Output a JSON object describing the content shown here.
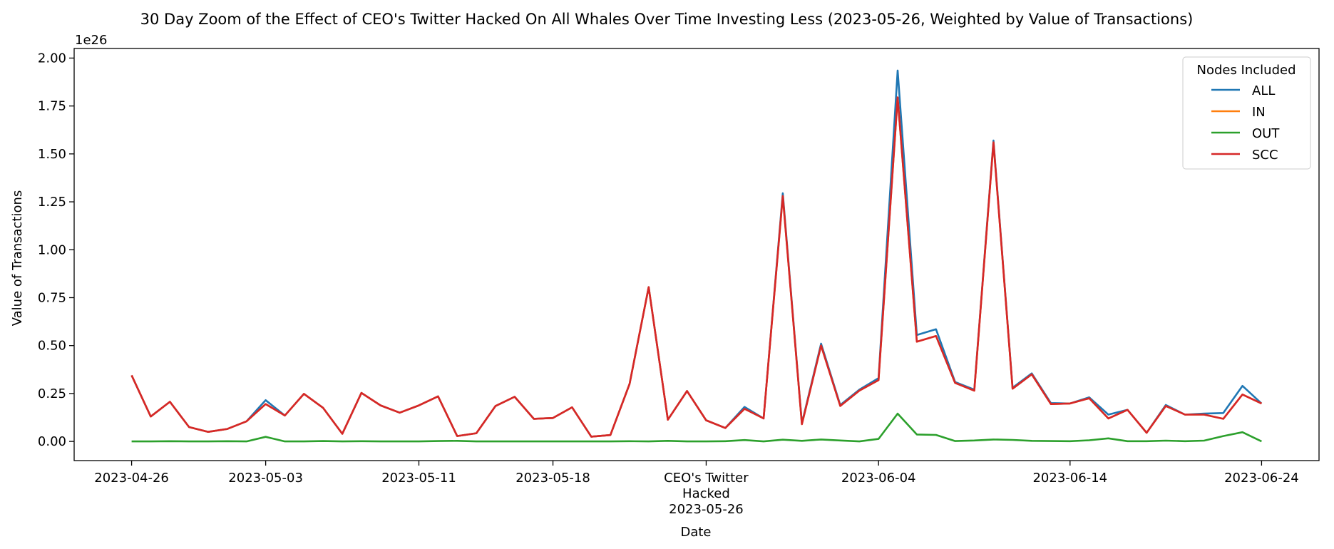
{
  "chart_data": {
    "type": "line",
    "title": "30 Day Zoom of the Effect of CEO's Twitter Hacked On All Whales Over Time Investing Less (2023-05-26, Weighted by Value of Transactions)",
    "xlabel": "Date",
    "ylabel": "Value of Transactions",
    "y_multiplier": "1e26",
    "ylim": [
      -0.1,
      2.05
    ],
    "xlim": [
      "2023-04-23",
      "2023-06-27"
    ],
    "y_ticks": [
      "0.00",
      "0.25",
      "0.50",
      "0.75",
      "1.00",
      "1.25",
      "1.50",
      "1.75",
      "2.00"
    ],
    "x_ticks": [
      {
        "date": "2023-04-26",
        "label": "2023-04-26"
      },
      {
        "date": "2023-05-03",
        "label": "2023-05-03"
      },
      {
        "date": "2023-05-11",
        "label": "2023-05-11"
      },
      {
        "date": "2023-05-18",
        "label": "2023-05-18"
      },
      {
        "date": "2023-05-26",
        "label": "CEO's Twitter\nHacked\n2023-05-26"
      },
      {
        "date": "2023-06-04",
        "label": "2023-06-04"
      },
      {
        "date": "2023-06-14",
        "label": "2023-06-14"
      },
      {
        "date": "2023-06-24",
        "label": "2023-06-24"
      }
    ],
    "legend_title": "Nodes Included",
    "legend_position": "top-right",
    "grid": false,
    "x": [
      "2023-04-26",
      "2023-04-27",
      "2023-04-28",
      "2023-04-29",
      "2023-04-30",
      "2023-05-01",
      "2023-05-02",
      "2023-05-03",
      "2023-05-04",
      "2023-05-05",
      "2023-05-06",
      "2023-05-07",
      "2023-05-08",
      "2023-05-09",
      "2023-05-10",
      "2023-05-11",
      "2023-05-12",
      "2023-05-13",
      "2023-05-14",
      "2023-05-15",
      "2023-05-16",
      "2023-05-17",
      "2023-05-18",
      "2023-05-19",
      "2023-05-20",
      "2023-05-21",
      "2023-05-22",
      "2023-05-23",
      "2023-05-24",
      "2023-05-25",
      "2023-05-26",
      "2023-05-27",
      "2023-05-28",
      "2023-05-29",
      "2023-05-30",
      "2023-05-31",
      "2023-06-01",
      "2023-06-02",
      "2023-06-03",
      "2023-06-04",
      "2023-06-05",
      "2023-06-06",
      "2023-06-07",
      "2023-06-08",
      "2023-06-09",
      "2023-06-10",
      "2023-06-11",
      "2023-06-12",
      "2023-06-13",
      "2023-06-14",
      "2023-06-15",
      "2023-06-16",
      "2023-06-17",
      "2023-06-18",
      "2023-06-19",
      "2023-06-20",
      "2023-06-21",
      "2023-06-22",
      "2023-06-23",
      "2023-06-24"
    ],
    "series": [
      {
        "name": "ALL",
        "color": "#1f77b4",
        "values": [
          0.345,
          0.13,
          0.207,
          0.075,
          0.05,
          0.065,
          0.105,
          0.215,
          0.135,
          0.248,
          0.175,
          0.04,
          0.253,
          0.188,
          0.15,
          0.188,
          0.235,
          0.028,
          0.043,
          0.185,
          0.233,
          0.118,
          0.122,
          0.178,
          0.025,
          0.033,
          0.3,
          0.805,
          0.113,
          0.263,
          0.11,
          0.07,
          0.18,
          0.12,
          1.295,
          0.095,
          0.51,
          0.19,
          0.27,
          0.33,
          1.935,
          0.555,
          0.585,
          0.31,
          0.27,
          1.57,
          0.28,
          0.355,
          0.2,
          0.198,
          0.23,
          0.14,
          0.165,
          0.045,
          0.19,
          0.14,
          0.145,
          0.148,
          0.29,
          0.198
        ]
      },
      {
        "name": "IN",
        "color": "#ff7f0e",
        "values": [
          0.345,
          0.13,
          0.207,
          0.075,
          0.05,
          0.065,
          0.105,
          0.195,
          0.135,
          0.248,
          0.175,
          0.04,
          0.253,
          0.188,
          0.15,
          0.188,
          0.235,
          0.028,
          0.043,
          0.185,
          0.233,
          0.118,
          0.122,
          0.178,
          0.025,
          0.033,
          0.3,
          0.805,
          0.113,
          0.263,
          0.11,
          0.07,
          0.17,
          0.12,
          1.28,
          0.09,
          0.5,
          0.185,
          0.265,
          0.32,
          1.795,
          0.52,
          0.55,
          0.305,
          0.265,
          1.56,
          0.275,
          0.35,
          0.195,
          0.198,
          0.225,
          0.12,
          0.165,
          0.045,
          0.185,
          0.14,
          0.14,
          0.118,
          0.245,
          0.198
        ]
      },
      {
        "name": "OUT",
        "color": "#2ca02c",
        "values": [
          0.0,
          0.0,
          0.001,
          0.0,
          0.0,
          0.001,
          0.0,
          0.024,
          0.0,
          0.0,
          0.002,
          0.0,
          0.001,
          0.0,
          0.0,
          0.0,
          0.002,
          0.003,
          0.0,
          0.0,
          0.0,
          0.0,
          0.0,
          0.0,
          0.0,
          0.0,
          0.001,
          0.0,
          0.003,
          0.0,
          0.0,
          0.001,
          0.007,
          0.0,
          0.009,
          0.003,
          0.01,
          0.005,
          0.0,
          0.013,
          0.145,
          0.036,
          0.034,
          0.002,
          0.005,
          0.01,
          0.008,
          0.003,
          0.002,
          0.001,
          0.006,
          0.016,
          0.001,
          0.001,
          0.004,
          0.001,
          0.004,
          0.028,
          0.048,
          0.0
        ]
      },
      {
        "name": "SCC",
        "color": "#d62728",
        "values": [
          0.345,
          0.13,
          0.207,
          0.075,
          0.05,
          0.065,
          0.105,
          0.195,
          0.135,
          0.248,
          0.175,
          0.04,
          0.253,
          0.188,
          0.15,
          0.188,
          0.235,
          0.028,
          0.043,
          0.185,
          0.233,
          0.118,
          0.122,
          0.178,
          0.025,
          0.033,
          0.3,
          0.805,
          0.113,
          0.263,
          0.11,
          0.07,
          0.17,
          0.12,
          1.28,
          0.09,
          0.5,
          0.185,
          0.265,
          0.32,
          1.795,
          0.52,
          0.55,
          0.305,
          0.265,
          1.56,
          0.275,
          0.35,
          0.195,
          0.198,
          0.225,
          0.12,
          0.165,
          0.045,
          0.185,
          0.14,
          0.14,
          0.118,
          0.245,
          0.198
        ]
      }
    ]
  }
}
